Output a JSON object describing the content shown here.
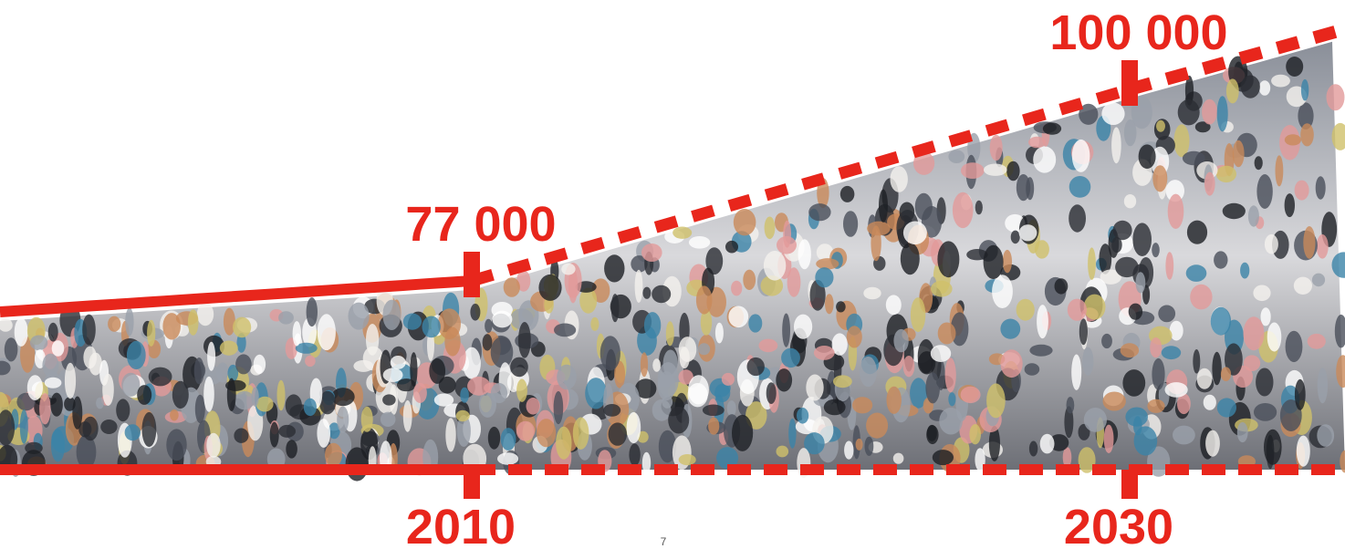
{
  "chart_data": {
    "type": "area",
    "x": [
      2010,
      2030
    ],
    "values": [
      77000,
      100000
    ],
    "value_labels": [
      "77 000",
      "100 000"
    ],
    "color": "#e8261c",
    "page_number": "7"
  }
}
